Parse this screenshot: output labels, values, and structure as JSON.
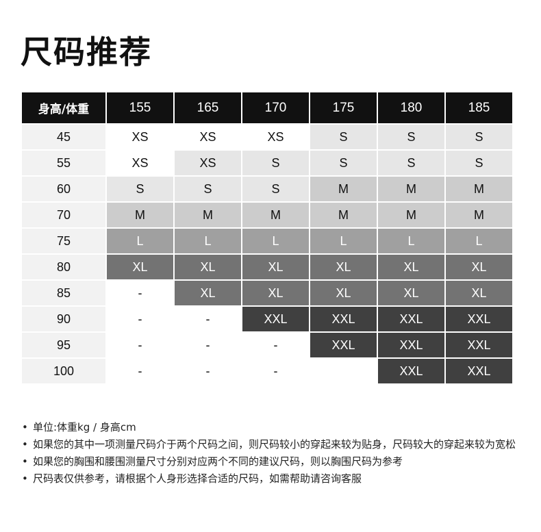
{
  "title": "尺码推荐",
  "table": {
    "corner": "身高/体重",
    "heights": [
      "155",
      "165",
      "170",
      "175",
      "180",
      "185"
    ],
    "rows": [
      {
        "weight": "45",
        "cells": [
          "XS",
          "XS",
          "XS",
          "S",
          "S",
          "S"
        ],
        "shade": [
          0,
          0,
          0,
          1,
          1,
          1
        ]
      },
      {
        "weight": "55",
        "cells": [
          "XS",
          "XS",
          "S",
          "S",
          "S",
          "S"
        ],
        "shade": [
          0,
          1,
          1,
          1,
          1,
          1
        ]
      },
      {
        "weight": "60",
        "cells": [
          "S",
          "S",
          "S",
          "M",
          "M",
          "M"
        ],
        "shade": [
          1,
          1,
          1,
          2,
          2,
          2
        ]
      },
      {
        "weight": "70",
        "cells": [
          "M",
          "M",
          "M",
          "M",
          "M",
          "M"
        ],
        "shade": [
          2,
          2,
          2,
          2,
          2,
          2
        ]
      },
      {
        "weight": "75",
        "cells": [
          "L",
          "L",
          "L",
          "L",
          "L",
          "L"
        ],
        "shade": [
          3,
          3,
          3,
          3,
          3,
          3
        ]
      },
      {
        "weight": "80",
        "cells": [
          "XL",
          "XL",
          "XL",
          "XL",
          "XL",
          "XL"
        ],
        "shade": [
          4,
          4,
          4,
          4,
          4,
          4
        ]
      },
      {
        "weight": "85",
        "cells": [
          "-",
          "XL",
          "XL",
          "XL",
          "XL",
          "XL"
        ],
        "shade": [
          0,
          4,
          4,
          4,
          4,
          4
        ]
      },
      {
        "weight": "90",
        "cells": [
          "-",
          "-",
          "XXL",
          "XXL",
          "XXL",
          "XXL"
        ],
        "shade": [
          0,
          0,
          5,
          5,
          5,
          5
        ]
      },
      {
        "weight": "95",
        "cells": [
          "-",
          "-",
          "-",
          "XXL",
          "XXL",
          "XXL"
        ],
        "shade": [
          0,
          0,
          0,
          5,
          5,
          5
        ]
      },
      {
        "weight": "100",
        "cells": [
          "-",
          "-",
          "-",
          "",
          "XXL",
          "XXL"
        ],
        "shade": [
          0,
          0,
          0,
          0,
          5,
          5
        ]
      }
    ]
  },
  "notes": [
    "单位:体重kg / 身高cm",
    "如果您的其中一项测量尺码介于两个尺码之间，则尺码较小的穿起来较为贴身，尺码较大的穿起来较为宽松",
    "如果您的胸围和腰围测量尺寸分别对应两个不同的建议尺码，则以胸围尺码为参考",
    "尺码表仅供参考，请根据个人身形选择合适的尺码，如需帮助请咨询客服"
  ]
}
